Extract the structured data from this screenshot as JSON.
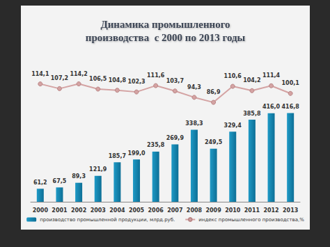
{
  "chart_data": {
    "type": "bar",
    "title": "Динамика промышленного\nпроизводства  с 2000 по 2013 годы",
    "categories": [
      "2000",
      "2001",
      "2002",
      "2003",
      "2004",
      "2005",
      "2006",
      "2007",
      "2008",
      "2009",
      "2010",
      "2011",
      "2012",
      "2013"
    ],
    "series": [
      {
        "name": "производство промышленной продукции, млрд.руб.",
        "type": "bar",
        "color": "#1f9ac6",
        "values": [
          61.2,
          67.5,
          89.3,
          121.9,
          185.7,
          199.0,
          235.8,
          269.9,
          338.3,
          249.5,
          329.4,
          385.8,
          416.0,
          416.8
        ],
        "value_labels": [
          "61,2",
          "67,5",
          "89,3",
          "121,9",
          "185,7",
          "199,0",
          "235,8",
          "269,9",
          "338,3",
          "249,5",
          "329,4",
          "385,8",
          "416,0",
          "416,8"
        ]
      },
      {
        "name": "индекс промышленного производства,%",
        "type": "line",
        "axis": "y2",
        "color": "#d4a3a3",
        "marker": "circle",
        "line_style": "solid",
        "values": [
          114.1,
          107.2,
          114.2,
          106.5,
          104.8,
          102.3,
          111.6,
          103.7,
          94.3,
          86.9,
          110.6,
          104.2,
          111.4,
          100.1
        ],
        "value_labels": [
          "114,1",
          "107,2",
          "114,2",
          "106,5",
          "104,8",
          "102,3",
          "111,6",
          "103,7",
          "94,3",
          "86,9",
          "110,6",
          "104,2",
          "111,4",
          "100,1"
        ]
      }
    ],
    "ylim": [
      0,
      700
    ],
    "y2lim": [
      -60,
      160
    ],
    "grid": false,
    "legend": "bottom",
    "data_labels": true,
    "tick_labels": "x"
  }
}
